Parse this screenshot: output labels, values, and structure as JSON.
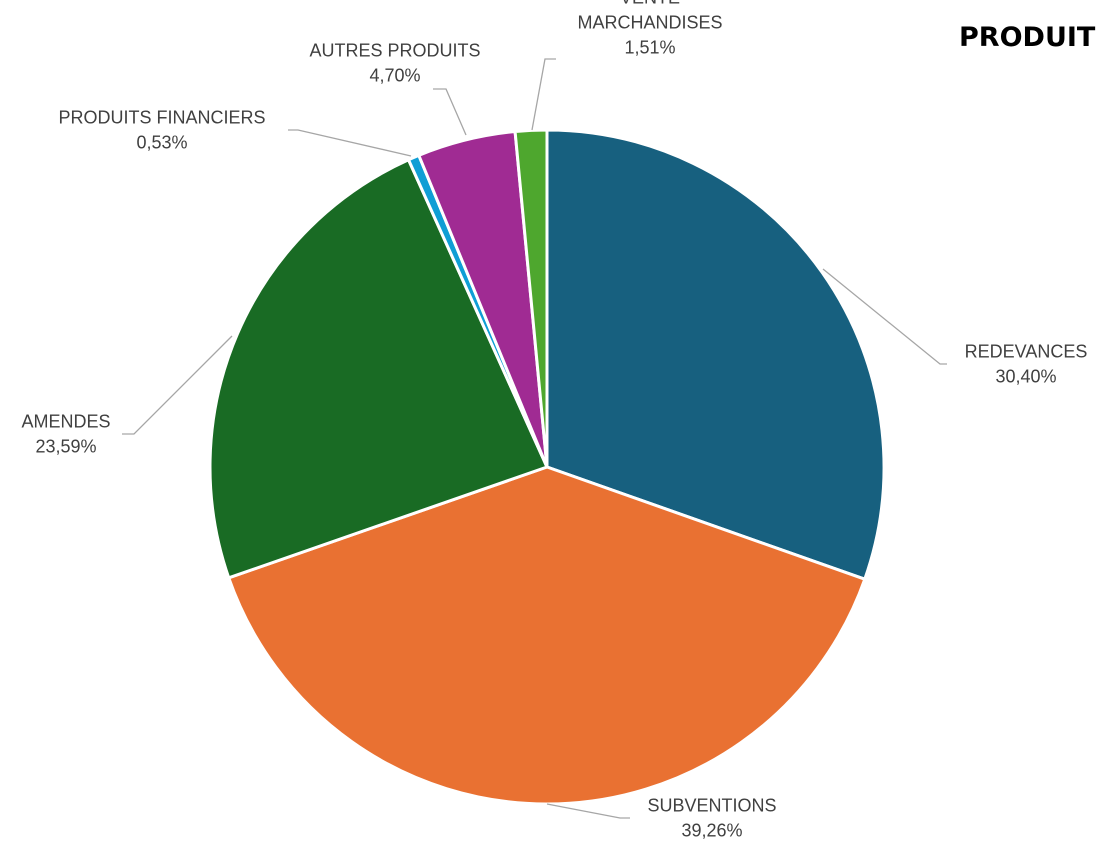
{
  "chart_data": {
    "type": "pie",
    "title": "PRODUIT",
    "slices": [
      {
        "label": "REDEVANCES",
        "label_lines": [
          "REDEVANCES"
        ],
        "value": 30.4,
        "display": "30,40%",
        "color": "#17607f"
      },
      {
        "label": "SUBVENTIONS",
        "label_lines": [
          "SUBVENTIONS"
        ],
        "value": 39.26,
        "display": "39,26%",
        "color": "#e97132"
      },
      {
        "label": "AMENDES",
        "label_lines": [
          "AMENDES"
        ],
        "value": 23.59,
        "display": "23,59%",
        "color": "#196b24"
      },
      {
        "label": "PRODUITS FINANCIERS",
        "label_lines": [
          "PRODUITS FINANCIERS"
        ],
        "value": 0.53,
        "display": "0,53%",
        "color": "#0f9ed5"
      },
      {
        "label": "AUTRES PRODUITS",
        "label_lines": [
          "AUTRES PRODUITS"
        ],
        "value": 4.7,
        "display": "4,70%",
        "color": "#a02b93"
      },
      {
        "label": "VENTE MARCHANDISES",
        "label_lines": [
          "VENTE",
          "MARCHANDISES"
        ],
        "value": 1.51,
        "display": "1,51%",
        "color": "#4ea72e"
      }
    ],
    "start_angle": "12 o'clock",
    "direction": "clockwise",
    "legend": "none",
    "data_labels": "outside with leader lines"
  }
}
